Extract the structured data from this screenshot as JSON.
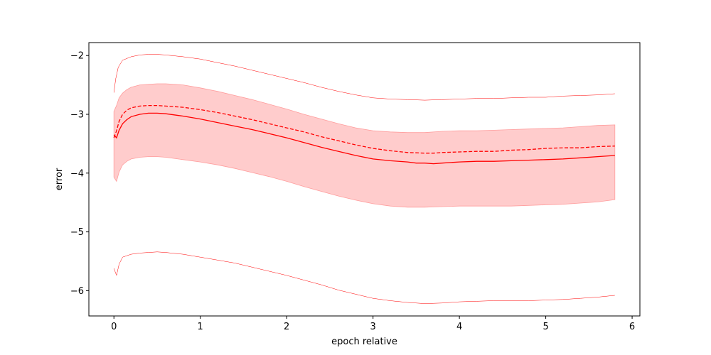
{
  "chart_data": {
    "type": "line",
    "title": "",
    "xlabel": "epoch relative",
    "ylabel": "error",
    "xlim": [
      -0.29,
      6.09
    ],
    "ylim": [
      -6.43,
      -1.78
    ],
    "xticks": [
      0,
      1,
      2,
      3,
      4,
      5,
      6
    ],
    "xtick_labels": [
      "0",
      "1",
      "2",
      "3",
      "4",
      "5",
      "6"
    ],
    "yticks": [
      -6,
      -5,
      -4,
      -3,
      -2
    ],
    "ytick_labels": [
      "−6",
      "−5",
      "−4",
      "−3",
      "−2"
    ],
    "grid": false,
    "legend": "none",
    "colors": {
      "line": "#ff0000",
      "band_fill": "#ffcccc",
      "band_edge": "#ff9d9d",
      "axes": "#000000"
    },
    "series": [
      {
        "role": "mean",
        "style": "solid",
        "x": [
          0,
          0.03,
          0.06,
          0.1,
          0.15,
          0.2,
          0.3,
          0.4,
          0.5,
          0.6,
          0.8,
          1.0,
          1.2,
          1.4,
          1.6,
          1.8,
          2.0,
          2.2,
          2.4,
          2.6,
          2.8,
          3.0,
          3.2,
          3.4,
          3.5,
          3.6,
          3.7,
          3.8,
          4.0,
          4.2,
          4.4,
          4.6,
          4.8,
          5.0,
          5.2,
          5.4,
          5.6,
          5.8
        ],
        "y": [
          -3.35,
          -3.4,
          -3.27,
          -3.16,
          -3.09,
          -3.04,
          -3.0,
          -2.98,
          -2.98,
          -2.99,
          -3.03,
          -3.08,
          -3.14,
          -3.2,
          -3.26,
          -3.33,
          -3.4,
          -3.48,
          -3.56,
          -3.63,
          -3.7,
          -3.76,
          -3.79,
          -3.81,
          -3.83,
          -3.83,
          -3.84,
          -3.83,
          -3.81,
          -3.8,
          -3.8,
          -3.79,
          -3.78,
          -3.77,
          -3.76,
          -3.74,
          -3.72,
          -3.7
        ]
      },
      {
        "role": "median",
        "style": "dashed",
        "x": [
          0,
          0.03,
          0.06,
          0.1,
          0.15,
          0.2,
          0.3,
          0.4,
          0.5,
          0.6,
          0.8,
          1.0,
          1.2,
          1.4,
          1.6,
          1.8,
          2.0,
          2.2,
          2.4,
          2.6,
          2.8,
          3.0,
          3.2,
          3.4,
          3.6,
          3.7,
          3.8,
          4.0,
          4.2,
          4.4,
          4.6,
          4.8,
          5.0,
          5.2,
          5.4,
          5.6,
          5.8
        ],
        "y": [
          -3.4,
          -3.28,
          -3.12,
          -3.0,
          -2.93,
          -2.89,
          -2.86,
          -2.85,
          -2.85,
          -2.86,
          -2.88,
          -2.92,
          -2.97,
          -3.03,
          -3.09,
          -3.16,
          -3.23,
          -3.3,
          -3.38,
          -3.45,
          -3.52,
          -3.58,
          -3.62,
          -3.65,
          -3.66,
          -3.66,
          -3.65,
          -3.64,
          -3.63,
          -3.63,
          -3.61,
          -3.6,
          -3.58,
          -3.57,
          -3.57,
          -3.55,
          -3.54
        ]
      },
      {
        "role": "max",
        "style": "thin",
        "x": [
          0,
          0.02,
          0.05,
          0.1,
          0.2,
          0.3,
          0.4,
          0.5,
          0.6,
          0.8,
          1.0,
          1.2,
          1.4,
          1.6,
          1.8,
          2.0,
          2.2,
          2.4,
          2.6,
          2.8,
          3.0,
          3.2,
          3.4,
          3.6,
          3.8,
          4.0,
          4.2,
          4.4,
          4.6,
          4.8,
          5.0,
          5.2,
          5.4,
          5.6,
          5.8
        ],
        "y": [
          -2.63,
          -2.4,
          -2.2,
          -2.08,
          -2.02,
          -1.99,
          -1.98,
          -1.98,
          -1.99,
          -2.02,
          -2.06,
          -2.12,
          -2.18,
          -2.25,
          -2.32,
          -2.39,
          -2.46,
          -2.54,
          -2.61,
          -2.67,
          -2.72,
          -2.74,
          -2.75,
          -2.76,
          -2.75,
          -2.74,
          -2.73,
          -2.73,
          -2.72,
          -2.71,
          -2.71,
          -2.69,
          -2.68,
          -2.67,
          -2.65
        ]
      },
      {
        "role": "min",
        "style": "thin",
        "x": [
          0,
          0.03,
          0.06,
          0.1,
          0.2,
          0.3,
          0.4,
          0.5,
          0.6,
          0.8,
          1.0,
          1.2,
          1.4,
          1.6,
          1.8,
          2.0,
          2.2,
          2.4,
          2.6,
          2.8,
          3.0,
          3.2,
          3.4,
          3.6,
          3.8,
          4.0,
          4.2,
          4.4,
          4.6,
          4.8,
          5.0,
          5.2,
          5.4,
          5.6,
          5.8
        ],
        "y": [
          -5.62,
          -5.74,
          -5.55,
          -5.43,
          -5.38,
          -5.36,
          -5.35,
          -5.34,
          -5.35,
          -5.38,
          -5.43,
          -5.48,
          -5.53,
          -5.6,
          -5.67,
          -5.74,
          -5.82,
          -5.9,
          -5.99,
          -6.06,
          -6.13,
          -6.17,
          -6.2,
          -6.22,
          -6.21,
          -6.19,
          -6.18,
          -6.17,
          -6.17,
          -6.17,
          -6.16,
          -6.15,
          -6.13,
          -6.11,
          -6.08
        ]
      },
      {
        "role": "band",
        "style": "fill",
        "x": [
          0,
          0.03,
          0.06,
          0.1,
          0.15,
          0.2,
          0.3,
          0.4,
          0.5,
          0.6,
          0.8,
          1.0,
          1.2,
          1.4,
          1.6,
          1.8,
          2.0,
          2.2,
          2.4,
          2.6,
          2.8,
          3.0,
          3.2,
          3.4,
          3.6,
          3.8,
          4.0,
          4.2,
          4.4,
          4.6,
          4.8,
          5.0,
          5.2,
          5.4,
          5.6,
          5.8
        ],
        "upper": [
          -2.95,
          -2.85,
          -2.72,
          -2.64,
          -2.58,
          -2.54,
          -2.5,
          -2.49,
          -2.48,
          -2.48,
          -2.5,
          -2.55,
          -2.61,
          -2.68,
          -2.75,
          -2.83,
          -2.91,
          -3.0,
          -3.08,
          -3.16,
          -3.23,
          -3.28,
          -3.3,
          -3.31,
          -3.31,
          -3.29,
          -3.28,
          -3.28,
          -3.27,
          -3.26,
          -3.25,
          -3.24,
          -3.23,
          -3.21,
          -3.19,
          -3.18
        ],
        "lower": [
          -4.07,
          -4.14,
          -3.98,
          -3.86,
          -3.8,
          -3.76,
          -3.73,
          -3.72,
          -3.72,
          -3.73,
          -3.77,
          -3.81,
          -3.86,
          -3.92,
          -3.99,
          -4.06,
          -4.14,
          -4.23,
          -4.31,
          -4.39,
          -4.46,
          -4.52,
          -4.56,
          -4.58,
          -4.58,
          -4.57,
          -4.56,
          -4.56,
          -4.56,
          -4.56,
          -4.55,
          -4.54,
          -4.53,
          -4.51,
          -4.49,
          -4.45
        ]
      }
    ]
  }
}
